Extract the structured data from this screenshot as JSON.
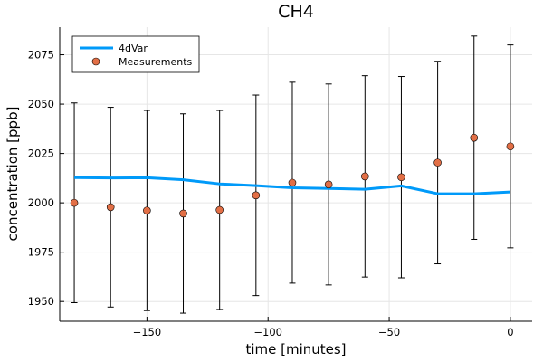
{
  "chart_data": {
    "type": "line",
    "title": "CH4",
    "xlabel": "time [minutes]",
    "ylabel": "concentration [ppb]",
    "xlim": [
      -186,
      9
    ],
    "ylim": [
      1940,
      2089
    ],
    "grid": true,
    "legend_position": "top-left",
    "x_ticks": [
      -150,
      -100,
      -50,
      0
    ],
    "x_tick_labels": [
      "−150",
      "−100",
      "−50",
      "0"
    ],
    "y_ticks": [
      1950,
      1975,
      2000,
      2025,
      2050,
      2075
    ],
    "y_tick_labels": [
      "1950",
      "1975",
      "2000",
      "2025",
      "2050",
      "2075"
    ],
    "series": [
      {
        "name": "4dVar",
        "type": "line",
        "color": "#009af9",
        "x": [
          -180,
          -165,
          -150,
          -135,
          -120,
          -105,
          -90,
          -75,
          -60,
          -45,
          -30,
          -15,
          0
        ],
        "y": [
          2012.8,
          2012.6,
          2012.7,
          2011.7,
          2009.6,
          2008.7,
          2007.6,
          2007.3,
          2006.9,
          2008.6,
          2004.6,
          2004.6,
          2005.5
        ]
      },
      {
        "name": "Measurements",
        "type": "scatter",
        "color": "#e26f46",
        "x": [
          -180,
          -165,
          -150,
          -135,
          -120,
          -105,
          -90,
          -75,
          -60,
          -45,
          -30,
          -15,
          0
        ],
        "y": [
          2000.0,
          1997.8,
          1996.1,
          1994.6,
          1996.4,
          2003.8,
          2010.2,
          2009.3,
          2013.4,
          2013.0,
          2020.4,
          2033.0,
          2028.6
        ],
        "error": [
          50.6,
          50.6,
          50.7,
          50.5,
          50.4,
          50.8,
          50.9,
          50.9,
          51.0,
          51.0,
          51.3,
          51.5,
          51.4
        ]
      }
    ]
  }
}
